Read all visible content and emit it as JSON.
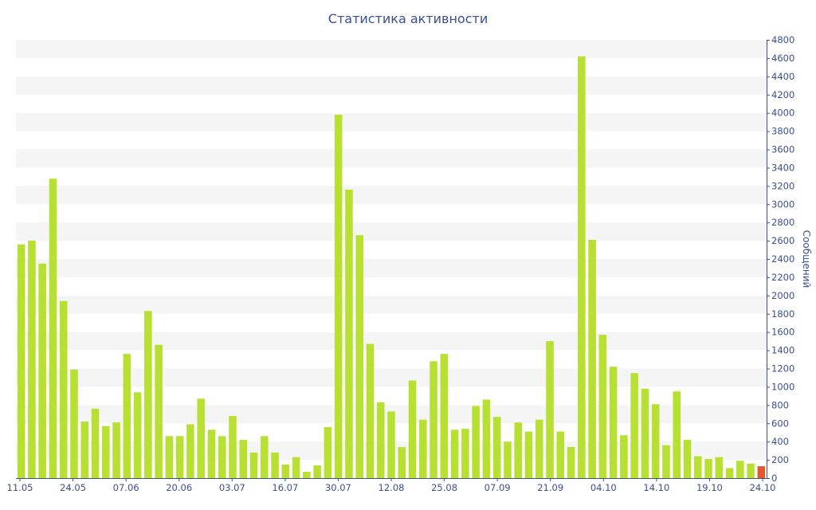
{
  "chart_data": {
    "type": "bar",
    "title": "Статистика активности",
    "ylabel": "Сообщений",
    "xlabel": "",
    "ylim": [
      0,
      4800
    ],
    "y_ticks": [
      0,
      200,
      400,
      600,
      800,
      1000,
      1200,
      1400,
      1600,
      1800,
      2000,
      2200,
      2400,
      2600,
      2800,
      3000,
      3200,
      3400,
      3600,
      3800,
      4000,
      4200,
      4400,
      4600,
      4800
    ],
    "x_tick_labels": [
      "11.05",
      "24.05",
      "07.06",
      "20.06",
      "03.07",
      "16.07",
      "30.07",
      "12.08",
      "25.08",
      "07.09",
      "21.09",
      "04.10",
      "14.10",
      "19.10",
      "24.10"
    ],
    "values": [
      2560,
      2600,
      2350,
      3280,
      1940,
      1190,
      620,
      760,
      570,
      610,
      1360,
      940,
      1830,
      1460,
      460,
      460,
      590,
      870,
      530,
      460,
      680,
      420,
      280,
      460,
      280,
      150,
      230,
      70,
      140,
      560,
      3980,
      3160,
      2660,
      1470,
      830,
      730,
      340,
      1070,
      640,
      1280,
      1360,
      530,
      540,
      790,
      860,
      670,
      400,
      610,
      510,
      640,
      1500,
      510,
      340,
      4620,
      2610,
      1570,
      1220,
      470,
      1150,
      980,
      810,
      360,
      950,
      420,
      240,
      210,
      230,
      110,
      190,
      160,
      130
    ],
    "colors": {
      "bar": "#b7e033",
      "last_bar": "#e05a2b",
      "band": "#f5f5f5",
      "axis_text": "#3a4f8f"
    },
    "grid": "alternating-bands",
    "yaxis_position": "right",
    "highlight_last": true
  }
}
